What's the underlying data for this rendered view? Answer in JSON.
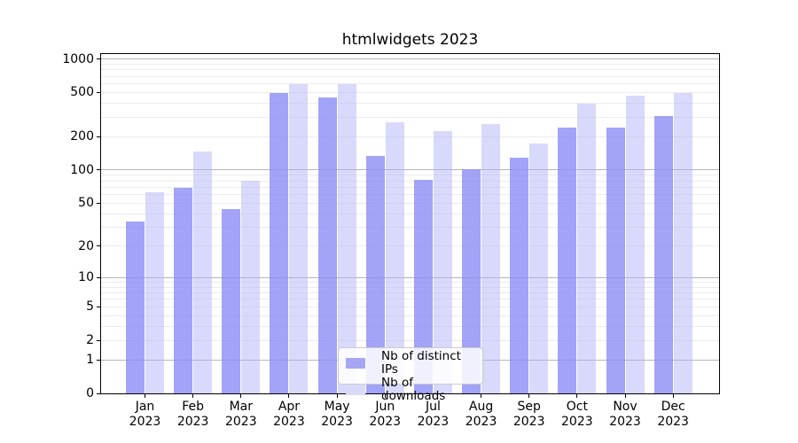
{
  "chart_data": {
    "type": "bar",
    "title": "htmlwidgets 2023",
    "categories": [
      "Jan",
      "Feb",
      "Mar",
      "Apr",
      "May",
      "Jun",
      "Jul",
      "Aug",
      "Sep",
      "Oct",
      "Nov",
      "Dec"
    ],
    "category_year": "2023",
    "series": [
      {
        "name": "Nb of distinct IPs",
        "values": [
          34,
          69,
          44,
          500,
          455,
          134,
          82,
          101,
          129,
          241,
          242,
          307
        ],
        "fill": "rgba(140,140,246,0.8)",
        "legend_color": "#a6a6f2"
      },
      {
        "name": "Nb of downloads",
        "values": [
          63,
          147,
          80,
          600,
          600,
          268,
          226,
          260,
          173,
          400,
          467,
          498
        ],
        "fill": "rgba(180,180,248,0.5)",
        "legend_color": "#d9d9f9"
      }
    ],
    "y_scale": "log10(1+y)",
    "y_ticks": [
      1000,
      500,
      200,
      100,
      50,
      20,
      10,
      5,
      2,
      1,
      0
    ],
    "ylim": [
      0,
      1110
    ],
    "grid": "major and minor horizontal gridlines",
    "legend_position": "inside bottom-center",
    "xlabel": "",
    "ylabel": ""
  }
}
